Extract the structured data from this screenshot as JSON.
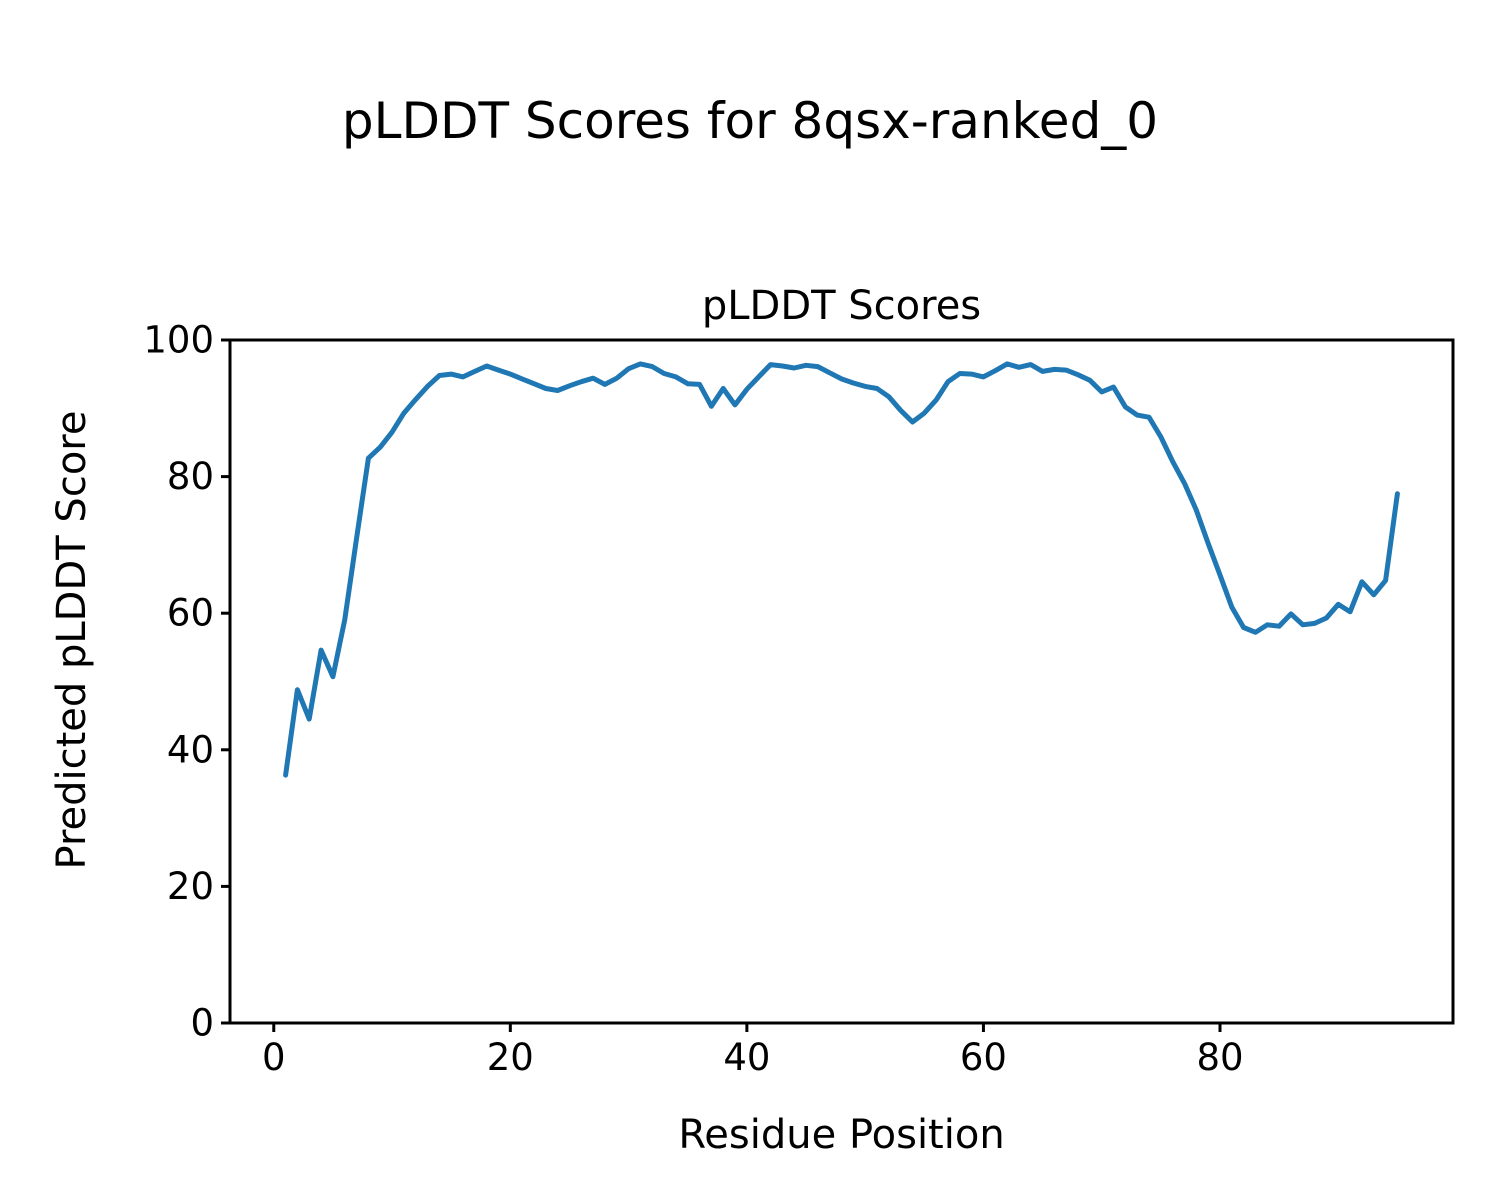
{
  "figure": {
    "suptitle": "pLDDT Scores for 8qsx-ranked_0",
    "background": "#ffffff",
    "text_color": "#000000"
  },
  "chart_data": {
    "type": "line",
    "title": "pLDDT Scores",
    "xlabel": "Residue Position",
    "ylabel": "Predicted pLDDT Score",
    "series_name": "pLDDT",
    "line_color": "#1f77b4",
    "line_width": 5,
    "grid": false,
    "legend": "none",
    "xlim": [
      -3.7,
      99.7
    ],
    "ylim": [
      0,
      100
    ],
    "xticks": [
      0,
      20,
      40,
      60,
      80
    ],
    "yticks": [
      0,
      20,
      40,
      60,
      80,
      100
    ],
    "x": [
      1,
      2,
      3,
      4,
      5,
      6,
      7,
      8,
      9,
      10,
      11,
      12,
      13,
      14,
      15,
      16,
      17,
      18,
      19,
      20,
      21,
      22,
      23,
      24,
      25,
      26,
      27,
      28,
      29,
      30,
      31,
      32,
      33,
      34,
      35,
      36,
      37,
      38,
      39,
      40,
      41,
      42,
      43,
      44,
      45,
      46,
      47,
      48,
      49,
      50,
      51,
      52,
      53,
      54,
      55,
      56,
      57,
      58,
      59,
      60,
      61,
      62,
      63,
      64,
      65,
      66,
      67,
      68,
      69,
      70,
      71,
      72,
      73,
      74,
      75,
      76,
      77,
      78,
      79,
      80,
      81,
      82,
      83,
      84,
      85,
      86,
      87,
      88,
      89,
      90,
      91,
      92,
      93,
      94,
      95
    ],
    "y": [
      36.3,
      48.8,
      44.5,
      54.6,
      50.7,
      59.0,
      71.0,
      82.7,
      84.3,
      86.5,
      89.3,
      91.3,
      93.2,
      94.8,
      95.0,
      94.6,
      95.4,
      96.2,
      95.6,
      95.0,
      94.3,
      93.6,
      92.9,
      92.6,
      93.3,
      93.9,
      94.4,
      93.5,
      94.4,
      95.8,
      96.5,
      96.1,
      95.1,
      94.6,
      93.6,
      93.5,
      90.3,
      92.9,
      90.5,
      92.8,
      94.6,
      96.4,
      96.2,
      95.9,
      96.3,
      96.1,
      95.2,
      94.3,
      93.7,
      93.2,
      92.9,
      91.7,
      89.7,
      88.0,
      89.3,
      91.2,
      93.9,
      95.1,
      95.0,
      94.6,
      95.5,
      96.5,
      96.0,
      96.4,
      95.4,
      95.7,
      95.6,
      94.9,
      94.1,
      92.4,
      93.1,
      90.2,
      89.0,
      88.7,
      85.8,
      82.2,
      79.0,
      75.1,
      70.2,
      65.6,
      60.9,
      57.9,
      57.2,
      58.3,
      58.1,
      59.9,
      58.3,
      58.5,
      59.3,
      61.3,
      60.2,
      64.6,
      62.7,
      64.8,
      77.5
    ]
  }
}
